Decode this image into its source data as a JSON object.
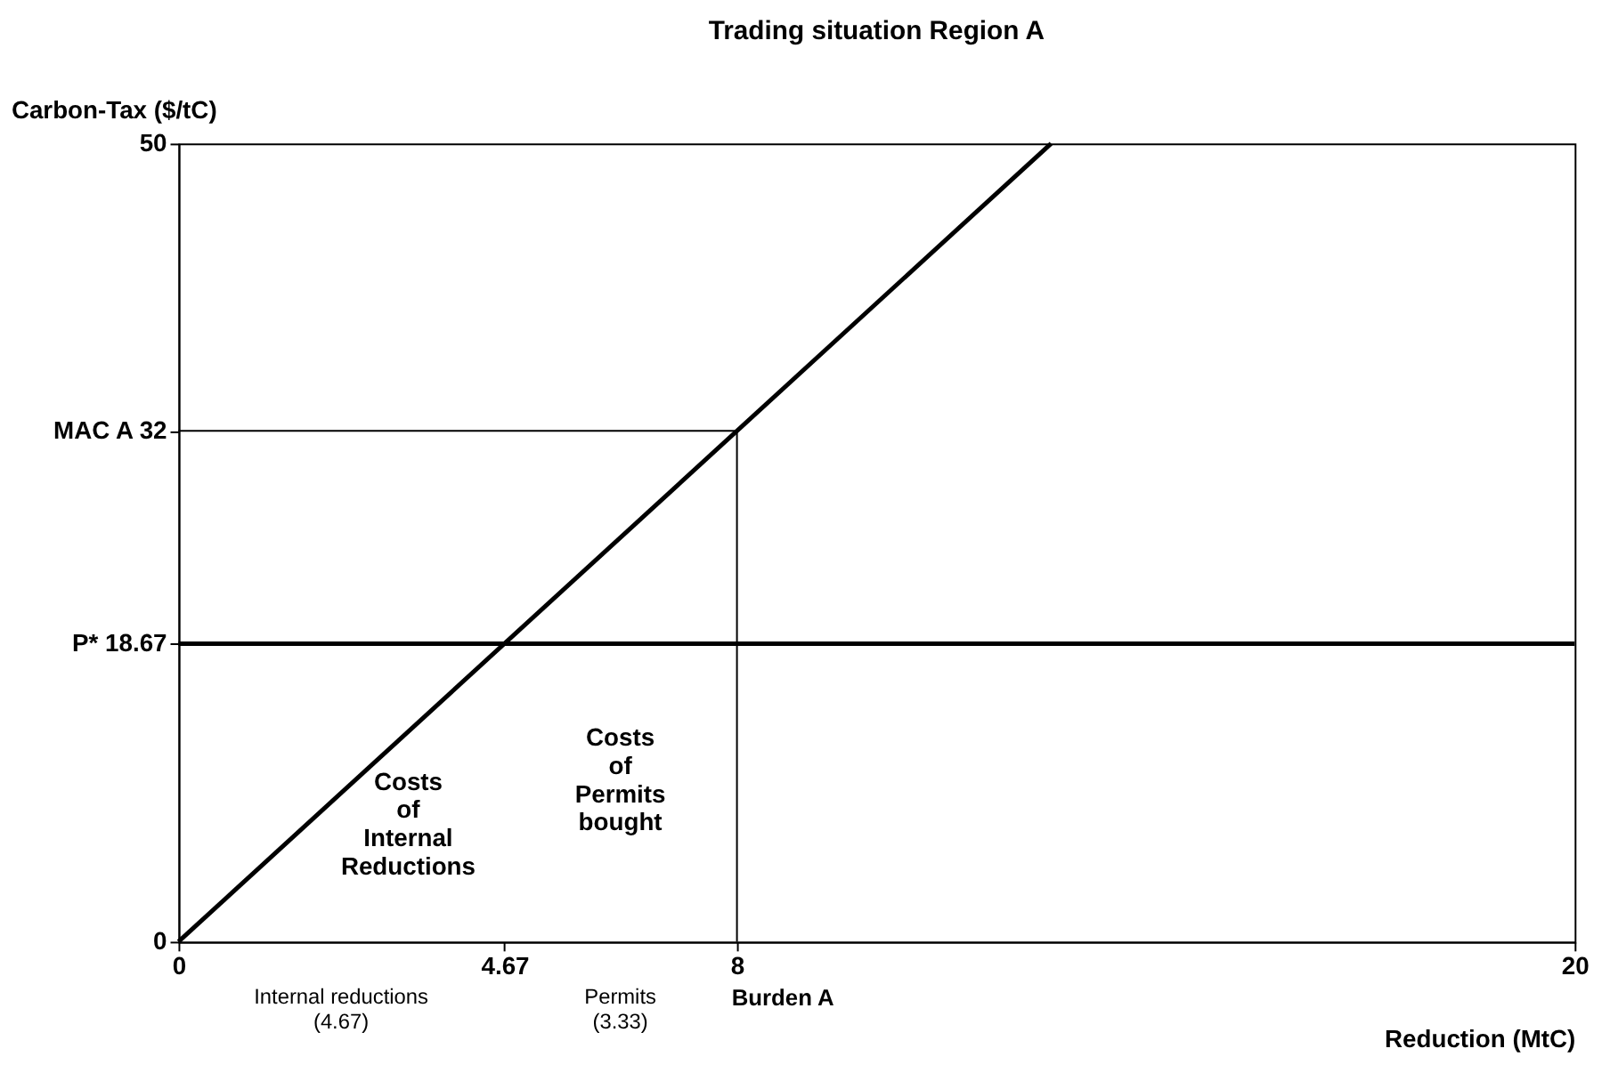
{
  "chart_data": {
    "type": "line",
    "title": "Trading situation Region A",
    "xlabel": "Reduction (MtC)",
    "ylabel": "Carbon-Tax ($/tC)",
    "xlim": [
      0,
      20
    ],
    "ylim": [
      0,
      50
    ],
    "xticks": [
      0,
      {
        "value": 4.67,
        "label": "4.67"
      },
      8,
      20
    ],
    "yticks": [
      0,
      {
        "value": 18.67,
        "label": "P*  18.67"
      },
      {
        "value": 32,
        "label": "MAC A  32"
      },
      50
    ],
    "series": [
      {
        "color": "#000000",
        "x": [
          0,
          12.5
        ],
        "values": [
          0,
          50
        ]
      },
      {
        "color": "#000000",
        "x": [
          0,
          8,
          8
        ],
        "values": [
          32,
          32,
          0
        ]
      }
    ],
    "ref_lines": [
      {
        "axis": "y",
        "value": 18.67,
        "color": "#000000"
      }
    ],
    "annotations": [
      "Costs\nof\nInternal\nReductions",
      "Costs\nof\nPermits\nbought",
      "Internal reductions\n(4.67)",
      "Permits\n(3.33)",
      "Burden A"
    ],
    "grid": false,
    "marker": "none",
    "line_style": "solid"
  }
}
